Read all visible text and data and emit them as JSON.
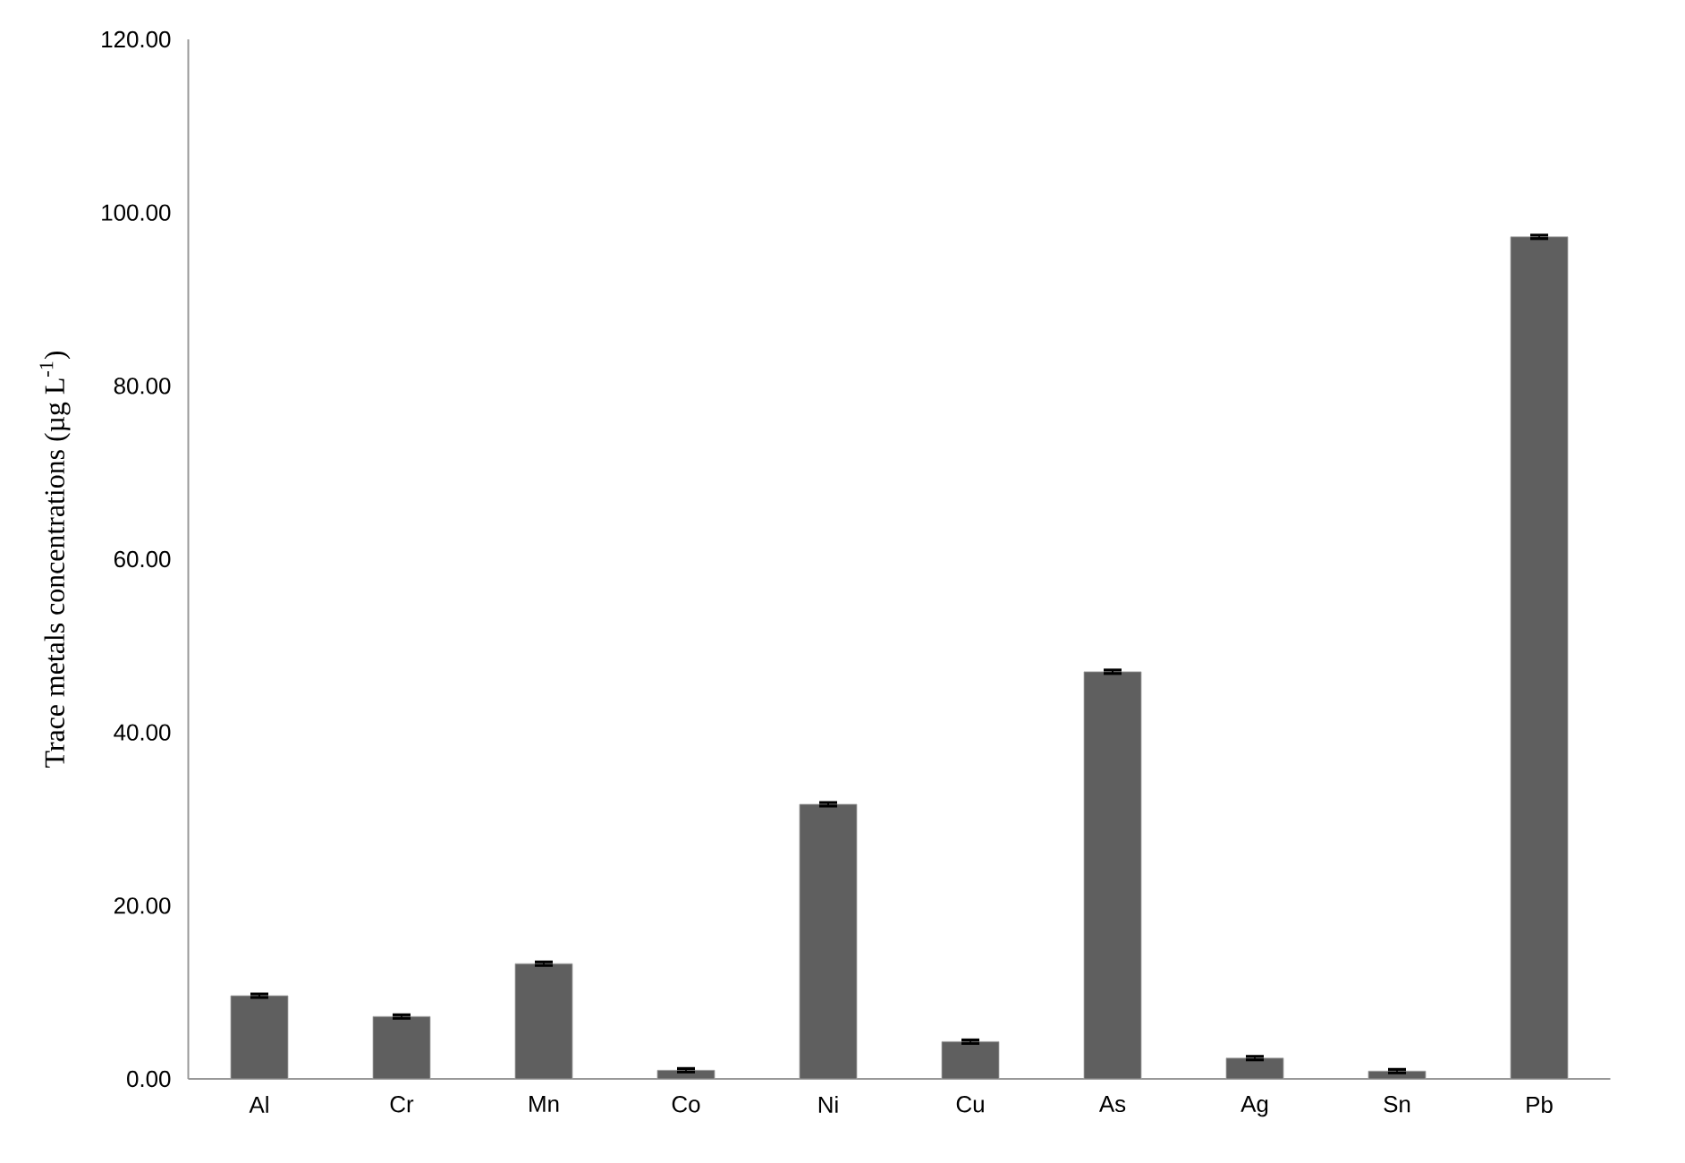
{
  "chart_data": {
    "type": "bar",
    "ylabel": "Trace metals concentrations (µg L$^{-1}$)",
    "categories": [
      "Al",
      "Cr",
      "Mn",
      "Co",
      "Ni",
      "Cu",
      "As",
      "Ag",
      "Sn",
      "Pb"
    ],
    "values": [
      9.6,
      7.2,
      13.3,
      1.0,
      31.7,
      4.3,
      47.0,
      2.4,
      0.9,
      97.2
    ],
    "errors": [
      0.2,
      0.2,
      0.2,
      0.2,
      0.2,
      0.2,
      0.2,
      0.2,
      0.2,
      0.2
    ],
    "color": "#5f5f5f",
    "ylim": [
      0,
      120
    ],
    "yticks": [
      {
        "value": 0,
        "label": "0.00"
      },
      {
        "value": 20,
        "label": "20.00"
      },
      {
        "value": 40,
        "label": "40.00"
      },
      {
        "value": 60,
        "label": "60.00"
      },
      {
        "value": 80,
        "label": "80.00"
      },
      {
        "value": 100,
        "label": "100.00"
      },
      {
        "value": 120,
        "label": "120.00"
      }
    ],
    "grid": false
  }
}
